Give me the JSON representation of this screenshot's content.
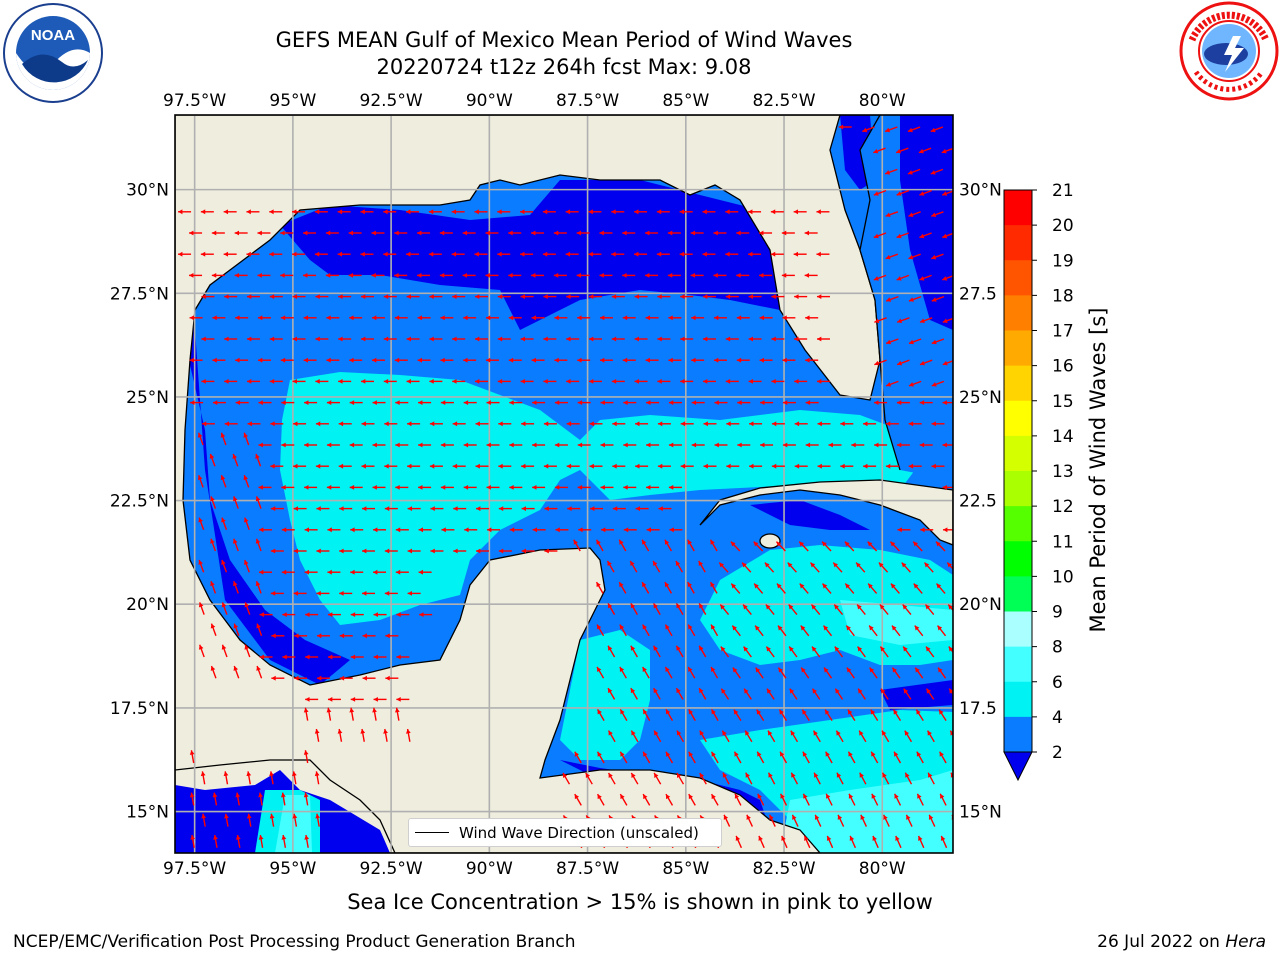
{
  "header": {
    "title_line1": "GEFS MEAN Gulf of Mexico Mean Period of Wind Waves",
    "title_line2": "20220724 t12z 264h fcst   Max: 9.08"
  },
  "logos": {
    "left": "noaa-logo",
    "right": "nws-logo"
  },
  "map": {
    "lon_ticks": [
      "97.5°W",
      "95°W",
      "92.5°W",
      "90°W",
      "87.5°W",
      "85°W",
      "82.5°W",
      "80°W"
    ],
    "lat_ticks_left": [
      "30°N",
      "27.5°N",
      "25°N",
      "22.5°N",
      "20°N",
      "17.5°N",
      "15°N"
    ],
    "lat_ticks_right": [
      "30°N",
      "27.5",
      "25°N",
      "22.5",
      "20°N",
      "17.5",
      "15°N"
    ],
    "legend_label": "Wind Wave Direction (unscaled)",
    "colors": {
      "land": "#efedde",
      "ocean_2_4": "#0a7cff",
      "ocean_lt2": "#0000ee",
      "ocean_4_6": "#00f2f2",
      "ocean_6_8": "#44ffff",
      "arrows": "#ff0000",
      "grid": "#b0b0b0"
    }
  },
  "colorbar": {
    "title": "Mean Period of Wind Waves [s]",
    "labels": [
      "21",
      "20",
      "19",
      "18",
      "17",
      "16",
      "15",
      "14",
      "13",
      "12",
      "11",
      "10",
      "9",
      "8",
      "6",
      "4",
      "2"
    ],
    "colors": [
      "#ff0000",
      "#ff2a00",
      "#ff5500",
      "#ff8000",
      "#ffaa00",
      "#ffd400",
      "#ffff00",
      "#d4ff00",
      "#aaff00",
      "#55ff00",
      "#00ff00",
      "#00ff55",
      "#aaffff",
      "#44ffff",
      "#00f2f2",
      "#0a7cff"
    ],
    "underflow_color": "#0000ee"
  },
  "notes": {
    "sea_ice": "Sea Ice Concentration > 15% is shown in pink to yellow"
  },
  "footer": {
    "left": "NCEP/EMC/Verification Post Processing Product Generation Branch",
    "right_date": "26 Jul 2022 on",
    "right_host": "Hera"
  }
}
